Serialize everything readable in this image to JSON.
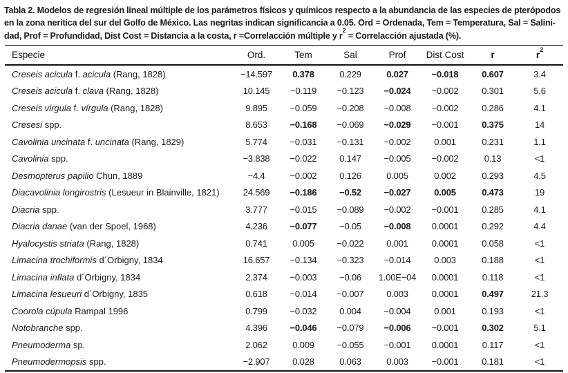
{
  "caption": {
    "line1": "Tabla 2. Modelos de regresión lineal múltiple de los parámetros físicos y químicos respecto a la abundancia de las especies de pterópodos",
    "line2": "en la zona neritica del sur del Golfo de México. Las negritas indican significancia a 0.05. Ord = Ordenada, Tem = Temperatura, Sal = Salini-",
    "line3_pre": "dad, Prof = Profundidad, Dist Cost = Distancia a la costa, r =Correlacción múltiple y r",
    "line3_sup": "2",
    "line3_post": " = Correlacción ajustada (%)."
  },
  "table": {
    "column_keys": [
      "ord",
      "tem",
      "sal",
      "prof",
      "dist-cost",
      "r",
      "r2"
    ],
    "headers": [
      {
        "label": "Especie",
        "bold": false
      },
      {
        "label": "Ord.",
        "bold": false
      },
      {
        "label": "Tem",
        "bold": false
      },
      {
        "label": "Sal",
        "bold": false
      },
      {
        "label": "Prof",
        "bold": false
      },
      {
        "label": "Dist Cost",
        "bold": false
      },
      {
        "label": "r",
        "bold": true
      },
      {
        "label": "r",
        "sup": "2",
        "bold": true
      }
    ],
    "rows": [
      {
        "species": [
          {
            "t": "Creseis acicula",
            "i": true
          },
          {
            "t": " f. ",
            "i": false
          },
          {
            "t": "acicula",
            "i": true
          },
          {
            "t": " (Rang, 1828)",
            "i": false
          }
        ],
        "values": [
          "−14.597",
          "0.378",
          "0.229",
          "0.027",
          "−0.018",
          "0.607",
          "3.4"
        ],
        "bold": [
          false,
          true,
          false,
          true,
          true,
          true,
          false
        ]
      },
      {
        "species": [
          {
            "t": "Creseis acicula",
            "i": true
          },
          {
            "t": " f. ",
            "i": false
          },
          {
            "t": "clava",
            "i": true
          },
          {
            "t": " (Rang, 1828)",
            "i": false
          }
        ],
        "values": [
          "10.145",
          "−0.119",
          "−0.123",
          "−0.024",
          "−0.002",
          "0.301",
          "5.6"
        ],
        "bold": [
          false,
          false,
          false,
          true,
          false,
          false,
          false
        ]
      },
      {
        "species": [
          {
            "t": "Creseis virgula",
            "i": true
          },
          {
            "t": " f. ",
            "i": false
          },
          {
            "t": "vírgula",
            "i": true
          },
          {
            "t": " (Rang, 1828)",
            "i": false
          }
        ],
        "values": [
          "9.895",
          "−0.059",
          "−0.208",
          "−0.008",
          "−0.002",
          "0.286",
          "4.1"
        ],
        "bold": [
          false,
          false,
          false,
          false,
          false,
          false,
          false
        ]
      },
      {
        "species": [
          {
            "t": "Cresesi",
            "i": true
          },
          {
            "t": " spp.",
            "i": false
          }
        ],
        "values": [
          "8.653",
          "−0.168",
          "−0.069",
          "−0.029",
          "−0.001",
          "0.375",
          "14"
        ],
        "bold": [
          false,
          true,
          false,
          true,
          false,
          true,
          false
        ]
      },
      {
        "species": [
          {
            "t": "Cavolinia uncinata",
            "i": true
          },
          {
            "t": " f. ",
            "i": false
          },
          {
            "t": "uncinata",
            "i": true
          },
          {
            "t": " (Rang, 1829)",
            "i": false
          }
        ],
        "values": [
          "5.774",
          "−0.031",
          "−0.131",
          "−0.002",
          "0.001",
          "0.231",
          "1.1"
        ],
        "bold": [
          false,
          false,
          false,
          false,
          false,
          false,
          false
        ]
      },
      {
        "species": [
          {
            "t": "Cavolinia",
            "i": true
          },
          {
            "t": " spp.",
            "i": false
          }
        ],
        "values": [
          "−3.838",
          "−0.022",
          "0.147",
          "−0.005",
          "−0.002",
          "0.13",
          "<1"
        ],
        "bold": [
          false,
          false,
          false,
          false,
          false,
          false,
          false
        ]
      },
      {
        "species": [
          {
            "t": "Desmopterus papilio",
            "i": true
          },
          {
            "t": " Chun, 1889",
            "i": false
          }
        ],
        "values": [
          "−4.4",
          "−0.002",
          "0.126",
          "0.005",
          "0.002",
          "0.293",
          "4.5"
        ],
        "bold": [
          false,
          false,
          false,
          false,
          false,
          false,
          false
        ]
      },
      {
        "species": [
          {
            "t": "Diacavolinia longirostris",
            "i": true
          },
          {
            "t": " (Lesueur in Blainville, 1821)",
            "i": false
          }
        ],
        "values": [
          "24.569",
          "−0.186",
          "−0.52",
          "−0.027",
          "0.005",
          "0.473",
          "19"
        ],
        "bold": [
          false,
          true,
          true,
          true,
          true,
          true,
          false
        ]
      },
      {
        "species": [
          {
            "t": "Diacria",
            "i": true
          },
          {
            "t": " spp.",
            "i": false
          }
        ],
        "values": [
          "3.777",
          "−0.015",
          "−0.089",
          "−0.002",
          "−0.001",
          "0.285",
          "4.1"
        ],
        "bold": [
          false,
          false,
          false,
          false,
          false,
          false,
          false
        ]
      },
      {
        "species": [
          {
            "t": "Diacria danae",
            "i": true
          },
          {
            "t": " (van der Spoel, 1968)",
            "i": false
          }
        ],
        "values": [
          "4.236",
          "−0.077",
          "−0.05",
          "−0.008",
          "0.0001",
          "0.292",
          "4.4"
        ],
        "bold": [
          false,
          true,
          false,
          true,
          false,
          false,
          false
        ]
      },
      {
        "species": [
          {
            "t": "Hyalocystis striata",
            "i": true
          },
          {
            "t": " (Rang, 1828)",
            "i": false
          }
        ],
        "values": [
          "0.741",
          "0.005",
          "−0.022",
          "0.001",
          "0.0001",
          "0.058",
          "<1"
        ],
        "bold": [
          false,
          false,
          false,
          false,
          false,
          false,
          false
        ]
      },
      {
        "species": [
          {
            "t": "Limacina trochiformis",
            "i": true
          },
          {
            "t": " d´Orbigny, 1834",
            "i": false
          }
        ],
        "values": [
          "16.657",
          "−0.134",
          "−0.323",
          "−0.014",
          "0.003",
          "0.188",
          "<1"
        ],
        "bold": [
          false,
          false,
          false,
          false,
          false,
          false,
          false
        ]
      },
      {
        "species": [
          {
            "t": "Limacina inflata",
            "i": true
          },
          {
            "t": " d´Orbigny, 1834",
            "i": false
          }
        ],
        "values": [
          "2.374",
          "−0.003",
          "−0.06",
          "1.00E−04",
          "0.0001",
          "0.118",
          "<1"
        ],
        "bold": [
          false,
          false,
          false,
          false,
          false,
          false,
          false
        ]
      },
      {
        "species": [
          {
            "t": "Limacina lesueuri",
            "i": true
          },
          {
            "t": " d´Orbigny, 1835",
            "i": false
          }
        ],
        "values": [
          "0.618",
          "−0.014",
          "−0.007",
          "0.003",
          "0.0001",
          "0.497",
          "21.3"
        ],
        "bold": [
          false,
          false,
          false,
          false,
          false,
          true,
          false
        ]
      },
      {
        "species": [
          {
            "t": "Coorola cúpula",
            "i": true
          },
          {
            "t": " Rampal 1996",
            "i": false
          }
        ],
        "values": [
          "0.799",
          "−0.032",
          "0.004",
          "−0.004",
          "0.001",
          "0.193",
          "<1"
        ],
        "bold": [
          false,
          false,
          false,
          false,
          false,
          false,
          false
        ]
      },
      {
        "species": [
          {
            "t": "Notobranche",
            "i": true
          },
          {
            "t": " spp.",
            "i": false
          }
        ],
        "values": [
          "4.396",
          "−0.046",
          "−0.079",
          "−0.006",
          "−0.001",
          "0.302",
          "5.1"
        ],
        "bold": [
          false,
          true,
          false,
          true,
          false,
          true,
          false
        ]
      },
      {
        "species": [
          {
            "t": "Pneumoderma",
            "i": true
          },
          {
            "t": " sp.",
            "i": false
          }
        ],
        "values": [
          "2.062",
          "0.009",
          "−0.055",
          "−0.001",
          "0.0001",
          "0.117",
          "<1"
        ],
        "bold": [
          false,
          false,
          false,
          false,
          false,
          false,
          false
        ]
      },
      {
        "species": [
          {
            "t": "Pneumodermopsis",
            "i": true
          },
          {
            "t": " spp.",
            "i": false
          }
        ],
        "values": [
          "−2.907",
          "0.028",
          "0.063",
          "0.003",
          "−0.001",
          "0.181",
          "<1"
        ],
        "bold": [
          false,
          false,
          false,
          false,
          false,
          false,
          false
        ]
      }
    ]
  }
}
